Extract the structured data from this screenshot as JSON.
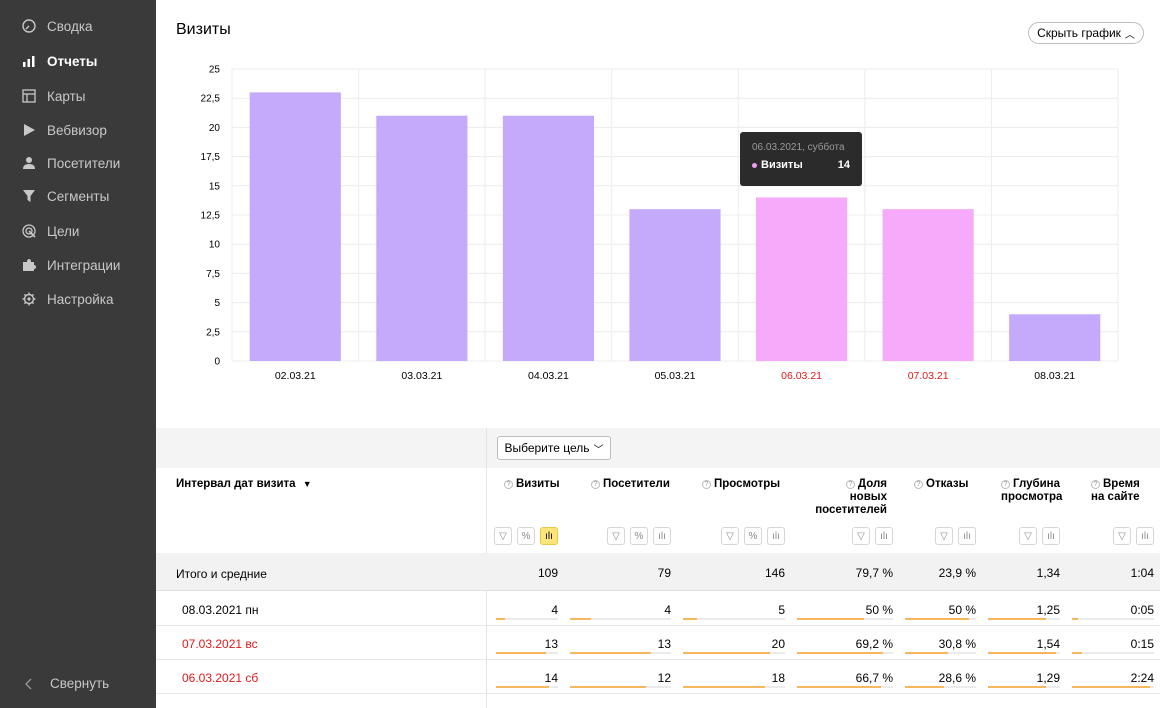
{
  "sidebar": {
    "items": [
      {
        "label": "Сводка",
        "icon": "dashboard-icon"
      },
      {
        "label": "Отчеты",
        "icon": "bar-chart-icon"
      },
      {
        "label": "Карты",
        "icon": "map-grid-icon"
      },
      {
        "label": "Вебвизор",
        "icon": "play-icon"
      },
      {
        "label": "Посетители",
        "icon": "user-icon"
      },
      {
        "label": "Сегменты",
        "icon": "filter-icon"
      },
      {
        "label": "Цели",
        "icon": "target-icon"
      },
      {
        "label": "Интеграции",
        "icon": "puzzle-icon"
      },
      {
        "label": "Настройка",
        "icon": "gear-icon"
      }
    ],
    "active": "Отчеты",
    "collapse_label": "Свернуть"
  },
  "chart": {
    "title": "Визиты",
    "hide_label": "Скрыть график",
    "tooltip": {
      "date": "06.03.2021, суббота",
      "series": "Визиты",
      "value": "14"
    }
  },
  "chart_data": {
    "type": "bar",
    "categories": [
      "02.03.21",
      "03.03.21",
      "04.03.21",
      "05.03.21",
      "06.03.21",
      "07.03.21",
      "08.03.21"
    ],
    "values": [
      23,
      21,
      21,
      13,
      14,
      13,
      4
    ],
    "weekend": [
      false,
      false,
      false,
      false,
      true,
      true,
      false
    ],
    "ylim": [
      0,
      25
    ],
    "yticks": [
      "0",
      "2,5",
      "5",
      "7,5",
      "10",
      "12,5",
      "15",
      "17,5",
      "20",
      "22,5",
      "25"
    ],
    "colors": {
      "weekday": "#c5a9fb",
      "weekend": "#f5aafa",
      "weekend_label": "#e0191b"
    },
    "grid": true
  },
  "table": {
    "goal_select": "Выберите цель",
    "group_header": "Интервал дат визита",
    "columns": [
      {
        "lines": [
          "Визиты"
        ]
      },
      {
        "lines": [
          "Посетители"
        ]
      },
      {
        "lines": [
          "Просмотры"
        ]
      },
      {
        "lines": [
          "Доля",
          "новых",
          "посетителей"
        ]
      },
      {
        "lines": [
          "Отказы"
        ]
      },
      {
        "lines": [
          "Глубина",
          "просмотра"
        ]
      },
      {
        "lines": [
          "Время",
          "на сайте"
        ]
      }
    ],
    "total": {
      "label": "Итого и средние",
      "values": [
        "109",
        "79",
        "146",
        "79,7 %",
        "23,9 %",
        "1,34",
        "1:04"
      ]
    },
    "rows": [
      {
        "label": "08.03.2021 пн",
        "weekend": false,
        "values": [
          "4",
          "4",
          "5",
          "50 %",
          "50 %",
          "1,25",
          "0:05"
        ],
        "fill": [
          0.15,
          0.21,
          0.14,
          0.7,
          0.9,
          0.8,
          0.07
        ]
      },
      {
        "label": "07.03.2021 вс",
        "weekend": true,
        "values": [
          "13",
          "13",
          "20",
          "69,2 %",
          "30,8 %",
          "1,54",
          "0:15"
        ],
        "fill": [
          0.8,
          0.8,
          0.85,
          0.9,
          0.6,
          0.95,
          0.12
        ]
      },
      {
        "label": "06.03.2021 сб",
        "weekend": true,
        "values": [
          "14",
          "12",
          "18",
          "66,7 %",
          "28,6 %",
          "1,29",
          "2:24"
        ],
        "fill": [
          0.85,
          0.75,
          0.8,
          0.87,
          0.55,
          0.8,
          0.95
        ]
      }
    ]
  }
}
